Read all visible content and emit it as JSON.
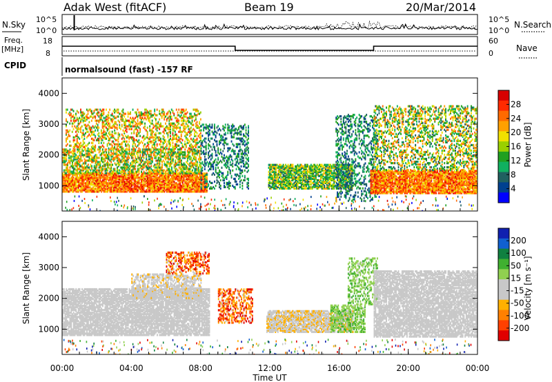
{
  "header": {
    "station": "Adak West (fitACF)",
    "beam": "Beam 19",
    "date": "20/Mar/2014"
  },
  "panels": {
    "nsky_label": "N.Sky",
    "nsearch_label": "N.Search",
    "nsky_ticks": [
      "10^5",
      "10^0"
    ],
    "freq_label_1": "Freq.",
    "freq_label_2": "[MHz]",
    "freq_ticks": [
      "18",
      "8"
    ],
    "nave_label": "Nave",
    "nave_ticks": [
      "60",
      "0"
    ],
    "cpid_label": "CPID",
    "cpid_text": "normalsound (fast) -157 RF"
  },
  "power_colorbar": {
    "label": "Power [dB]",
    "ticks": [
      "28",
      "24",
      "20",
      "16",
      "12",
      "8",
      "4"
    ],
    "colors": [
      "#d70000",
      "#ff2a00",
      "#ff6a00",
      "#ffa000",
      "#f0e000",
      "#9ad000",
      "#20a020",
      "#10b060",
      "#206060",
      "#004090",
      "#0000ff"
    ]
  },
  "velocity_colorbar": {
    "label": "Velocity [m s⁻¹]",
    "ticks": [
      "200",
      "100",
      "50",
      "15",
      "-15",
      "-50",
      "-100",
      "-200"
    ],
    "colors": [
      "#1020b0",
      "#1060d0",
      "#108040",
      "#40b030",
      "#90d050",
      "#c8c8c8",
      "#c8c8c8",
      "#ffb000",
      "#ff8000",
      "#ff4000",
      "#e00000"
    ]
  },
  "chart_data": {
    "type": "heatmap",
    "xlabel": "Time UT",
    "ylabel": "Slant Range [km]",
    "x_ticks": [
      "00:00",
      "04:00",
      "08:00",
      "12:00",
      "16:00",
      "20:00",
      "00:00"
    ],
    "x_range_hours": [
      0,
      24
    ],
    "y_ticks": [
      1000,
      2000,
      3000,
      4000
    ],
    "y_range": [
      180,
      4500
    ],
    "frequency_mhz": [
      {
        "start": 0,
        "end": 10,
        "value": 13
      },
      {
        "start": 10,
        "end": 18,
        "value": 10.5
      },
      {
        "start": 18,
        "end": 24,
        "value": 13
      }
    ],
    "power_blobs": [
      {
        "t0": 0.0,
        "t1": 8.4,
        "r0": 800,
        "r1": 1400,
        "pmin": 18,
        "pmax": 30,
        "density": 0.85
      },
      {
        "t0": 0.0,
        "t1": 8.0,
        "r0": 1400,
        "r1": 2200,
        "pmin": 8,
        "pmax": 26,
        "density": 0.55
      },
      {
        "t0": 0.2,
        "t1": 8.0,
        "r0": 2200,
        "r1": 3500,
        "pmin": 10,
        "pmax": 28,
        "density": 0.35
      },
      {
        "t0": 8.0,
        "t1": 10.8,
        "r0": 900,
        "r1": 3000,
        "pmin": 3,
        "pmax": 14,
        "density": 0.3
      },
      {
        "t0": 11.9,
        "t1": 16.8,
        "r0": 900,
        "r1": 1700,
        "pmin": 6,
        "pmax": 22,
        "density": 0.75
      },
      {
        "t0": 15.8,
        "t1": 18.2,
        "r0": 500,
        "r1": 3300,
        "pmin": 3,
        "pmax": 14,
        "density": 0.3
      },
      {
        "t0": 17.8,
        "t1": 24.0,
        "r0": 750,
        "r1": 1500,
        "pmin": 18,
        "pmax": 30,
        "density": 0.85
      },
      {
        "t0": 18.0,
        "t1": 24.0,
        "r0": 1500,
        "r1": 3600,
        "pmin": 6,
        "pmax": 26,
        "density": 0.35
      }
    ],
    "velocity_blobs": [
      {
        "t0": 0.0,
        "t1": 8.5,
        "r0": 800,
        "r1": 2300,
        "vmin": -15,
        "vmax": 15,
        "density": 0.8
      },
      {
        "t0": 4.0,
        "t1": 8.0,
        "r0": 2000,
        "r1": 2800,
        "vmin": -80,
        "vmax": -15,
        "density": 0.5
      },
      {
        "t0": 6.0,
        "t1": 8.5,
        "r0": 2800,
        "r1": 3500,
        "vmin": -250,
        "vmax": -50,
        "density": 0.4
      },
      {
        "t0": 9.0,
        "t1": 11.0,
        "r0": 1200,
        "r1": 2300,
        "vmin": -250,
        "vmax": -50,
        "density": 0.45
      },
      {
        "t0": 11.8,
        "t1": 16.8,
        "r0": 900,
        "r1": 1600,
        "vmin": -90,
        "vmax": -20,
        "density": 0.8
      },
      {
        "t0": 15.5,
        "t1": 17.5,
        "r0": 900,
        "r1": 1800,
        "vmin": 20,
        "vmax": 90,
        "density": 0.55
      },
      {
        "t0": 16.5,
        "t1": 18.2,
        "r0": 1800,
        "r1": 3300,
        "vmin": 20,
        "vmax": 90,
        "density": 0.35
      },
      {
        "t0": 18.0,
        "t1": 24.0,
        "r0": 750,
        "r1": 2900,
        "vmin": -15,
        "vmax": 15,
        "density": 0.75
      }
    ]
  }
}
